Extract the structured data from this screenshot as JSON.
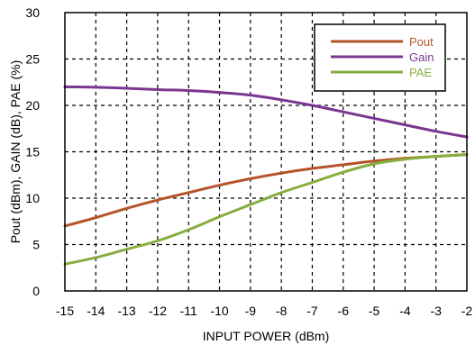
{
  "chart_data": {
    "type": "line",
    "xlabel": "INPUT POWER (dBm)",
    "ylabel": "Pout (dBm), GAIN (dB), PAE (%)",
    "xlim": [
      -15,
      -2
    ],
    "ylim": [
      0,
      30
    ],
    "x_ticks": [
      -15,
      -14,
      -13,
      -12,
      -11,
      -10,
      -9,
      -8,
      -7,
      -6,
      -5,
      -4,
      -3,
      -2
    ],
    "y_ticks": [
      0,
      5,
      10,
      15,
      20,
      25,
      30
    ],
    "grid": true,
    "legend_position": "top-right",
    "series": [
      {
        "name": "Pout",
        "color": "#b5532a",
        "x": [
          -15,
          -14,
          -13,
          -12,
          -11,
          -10,
          -9,
          -8,
          -7,
          -6,
          -5,
          -4,
          -3,
          -2
        ],
        "y": [
          7.0,
          7.9,
          8.9,
          9.8,
          10.6,
          11.4,
          12.1,
          12.7,
          13.2,
          13.6,
          14.0,
          14.3,
          14.5,
          14.7
        ]
      },
      {
        "name": "Gain",
        "color": "#7a3590",
        "x": [
          -15,
          -14,
          -13,
          -12,
          -11,
          -10,
          -9,
          -8,
          -7,
          -6,
          -5,
          -4,
          -3,
          -2
        ],
        "y": [
          22.0,
          21.95,
          21.85,
          21.7,
          21.6,
          21.4,
          21.1,
          20.6,
          20.0,
          19.3,
          18.6,
          17.9,
          17.2,
          16.6
        ]
      },
      {
        "name": "PAE",
        "color": "#86ad3e",
        "x": [
          -15,
          -14,
          -13,
          -12,
          -11,
          -10,
          -9,
          -8,
          -7,
          -6,
          -5,
          -4,
          -3,
          -2
        ],
        "y": [
          2.9,
          3.6,
          4.5,
          5.4,
          6.6,
          8.0,
          9.3,
          10.6,
          11.7,
          12.8,
          13.7,
          14.2,
          14.5,
          14.7
        ]
      }
    ]
  }
}
